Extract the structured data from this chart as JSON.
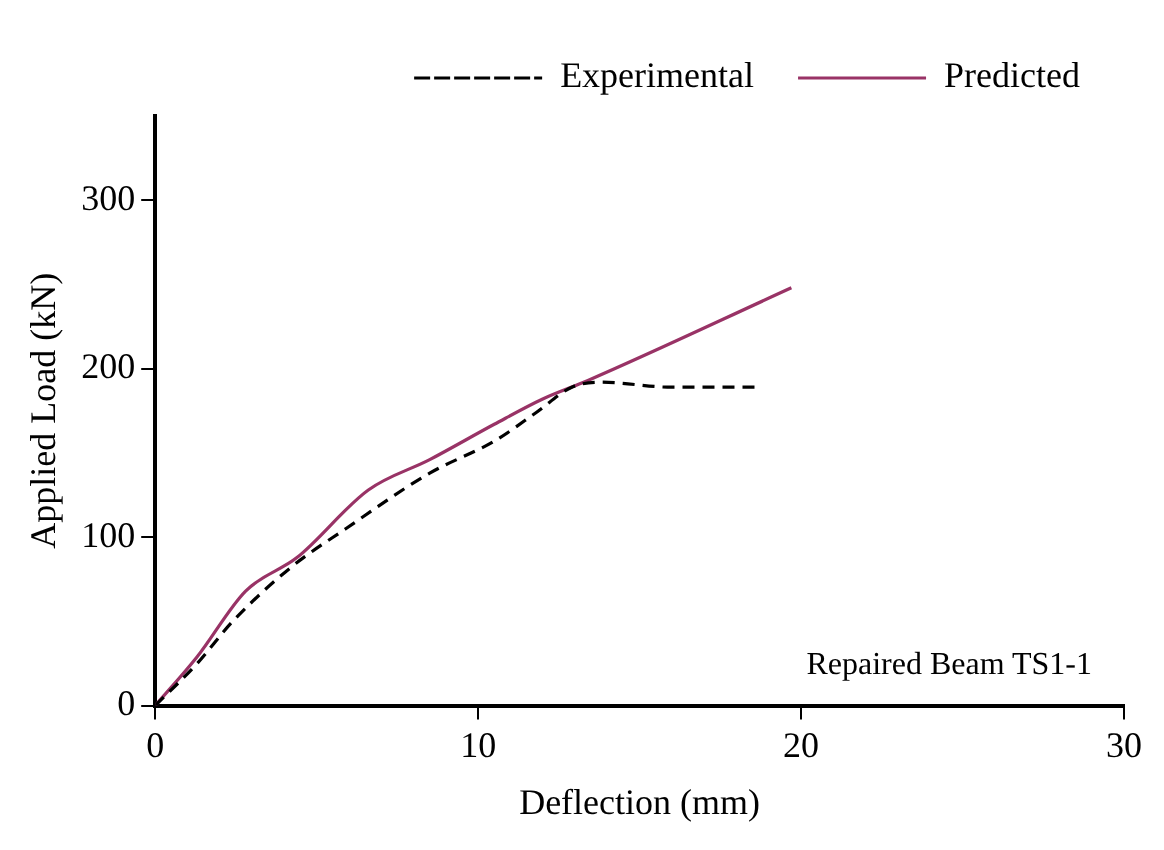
{
  "chart_data": {
    "type": "line",
    "xlabel": "Deflection (mm)",
    "ylabel": "Applied Load (kN)",
    "xlim": [
      0,
      30
    ],
    "xticks": [
      0,
      10,
      20,
      30
    ],
    "ylim": [
      0,
      350
    ],
    "yticks": [
      0,
      100,
      200,
      300
    ],
    "grid": false,
    "legend": "top",
    "marker": "none",
    "annotations": [
      "Repaired Beam TS1-1"
    ],
    "series": [
      {
        "name": "Experimental",
        "color": "#000000",
        "line_style": "dashed",
        "x": [
          0,
          1.3,
          2.4,
          4.2,
          5.9,
          8.5,
          10.5,
          11.8,
          12.9,
          13.8,
          16.0,
          18.6
        ],
        "values": [
          0,
          25,
          50,
          82,
          105,
          138,
          157,
          174,
          189,
          192,
          189,
          189
        ]
      },
      {
        "name": "Predicted",
        "color": "#993366",
        "line_style": "solid",
        "x": [
          0,
          1.3,
          2.8,
          4.4,
          6.6,
          8.5,
          10.5,
          12.0,
          13.4,
          19.7
        ],
        "values": [
          0,
          29,
          68,
          88,
          128,
          146,
          167,
          182,
          193,
          248
        ]
      }
    ]
  }
}
